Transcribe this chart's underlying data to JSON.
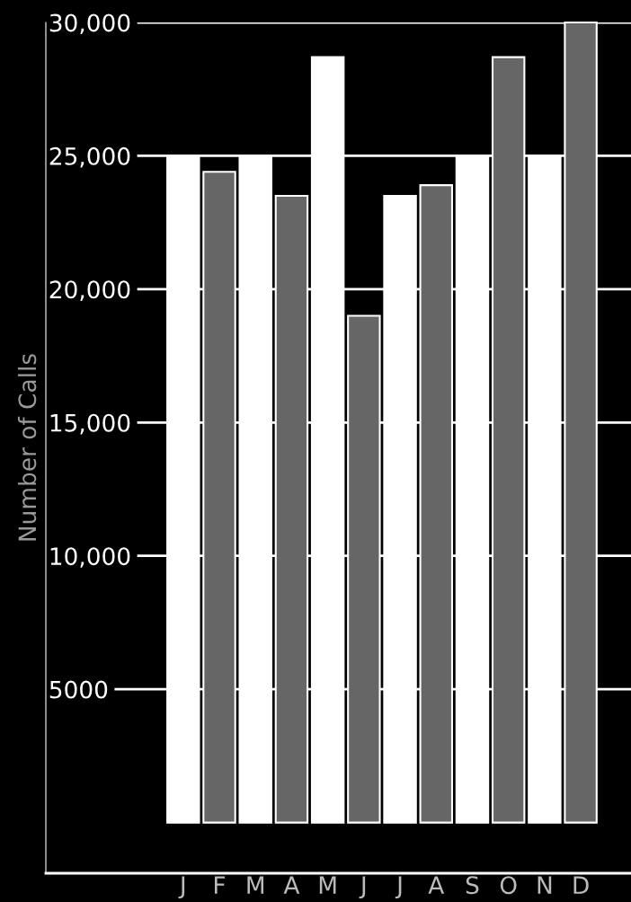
{
  "chart_data": {
    "type": "bar",
    "ylabel": "Number of Calls",
    "categories": [
      "J",
      "F",
      "M",
      "A",
      "M",
      "J",
      "J",
      "A",
      "S",
      "O",
      "N",
      "D"
    ],
    "values": [
      25000,
      24400,
      25000,
      23500,
      28700,
      19000,
      23500,
      23900,
      25000,
      28700,
      25000,
      30000
    ],
    "colors": [
      "#ffffff",
      "#666666",
      "#ffffff",
      "#666666",
      "#ffffff",
      "#666666",
      "#ffffff",
      "#666666",
      "#ffffff",
      "#666666",
      "#ffffff",
      "#666666"
    ],
    "ylim": [
      -1900,
      30000
    ],
    "yticks": [
      {
        "value": 5000,
        "label": "5000"
      },
      {
        "value": 10000,
        "label": "10,000"
      },
      {
        "value": 15000,
        "label": "15,000"
      },
      {
        "value": 20000,
        "label": "20,000"
      },
      {
        "value": 25000,
        "label": "25,000"
      },
      {
        "value": 30000,
        "label": "30,000"
      }
    ],
    "grid": "y"
  }
}
